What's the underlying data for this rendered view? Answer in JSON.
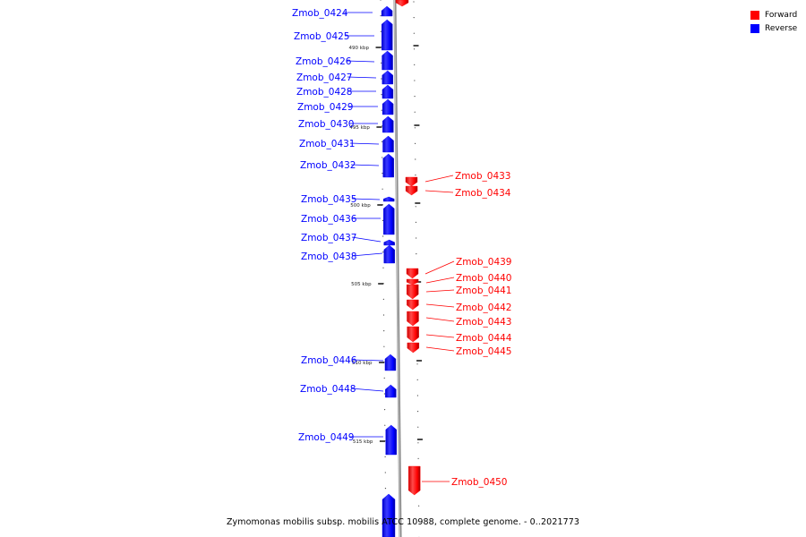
{
  "legend": {
    "forward": {
      "label": "Forward",
      "color": "#ff0000"
    },
    "reverse": {
      "label": "Reverse",
      "color": "#0000ff"
    }
  },
  "caption": "Zymomonas mobilis subsp. mobilis ATCC 10988, complete genome. - 0..2021773",
  "ticks": [
    "490 kbp",
    "495 kbp",
    "500 kbp",
    "505 kbp",
    "510 kbp",
    "515 kbp"
  ],
  "genes": [
    {
      "id": "Zmob_0424",
      "strand": "reverse"
    },
    {
      "id": "Zmob_0425",
      "strand": "reverse"
    },
    {
      "id": "Zmob_0426",
      "strand": "reverse"
    },
    {
      "id": "Zmob_0427",
      "strand": "reverse"
    },
    {
      "id": "Zmob_0428",
      "strand": "reverse"
    },
    {
      "id": "Zmob_0429",
      "strand": "reverse"
    },
    {
      "id": "Zmob_0430",
      "strand": "reverse"
    },
    {
      "id": "Zmob_0431",
      "strand": "reverse"
    },
    {
      "id": "Zmob_0432",
      "strand": "reverse"
    },
    {
      "id": "Zmob_0435",
      "strand": "reverse"
    },
    {
      "id": "Zmob_0436",
      "strand": "reverse"
    },
    {
      "id": "Zmob_0437",
      "strand": "reverse"
    },
    {
      "id": "Zmob_0438",
      "strand": "reverse"
    },
    {
      "id": "Zmob_0446",
      "strand": "reverse"
    },
    {
      "id": "Zmob_0448",
      "strand": "reverse"
    },
    {
      "id": "Zmob_0449",
      "strand": "reverse"
    },
    {
      "id": "Zmob_0433",
      "strand": "forward"
    },
    {
      "id": "Zmob_0434",
      "strand": "forward"
    },
    {
      "id": "Zmob_0439",
      "strand": "forward"
    },
    {
      "id": "Zmob_0440",
      "strand": "forward"
    },
    {
      "id": "Zmob_0441",
      "strand": "forward"
    },
    {
      "id": "Zmob_0442",
      "strand": "forward"
    },
    {
      "id": "Zmob_0443",
      "strand": "forward"
    },
    {
      "id": "Zmob_0444",
      "strand": "forward"
    },
    {
      "id": "Zmob_0445",
      "strand": "forward"
    },
    {
      "id": "Zmob_0450",
      "strand": "forward"
    }
  ]
}
